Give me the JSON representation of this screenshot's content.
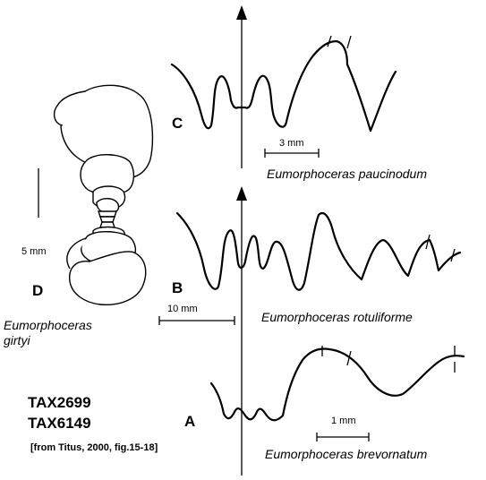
{
  "panels": {
    "c": {
      "letter": "C",
      "scale_label": "3 mm",
      "species": "Eumorphoceras paucinodum"
    },
    "b": {
      "letter": "B",
      "scale_label": "10 mm",
      "species": "Eumorphoceras rotuliforme"
    },
    "a": {
      "letter": "A",
      "scale_label": "1 mm",
      "species": "Eumorphoceras brevornatum"
    },
    "d": {
      "letter": "D",
      "scale_label": "5 mm",
      "species_line1": "Eumorphoceras",
      "species_line2": "girtyi"
    }
  },
  "taxon_ids": [
    "TAX2699",
    "TAX6149"
  ],
  "source": "[from Titus, 2000, fig.15-18]",
  "colors": {
    "ink": "#000000",
    "background": "#ffffff"
  }
}
